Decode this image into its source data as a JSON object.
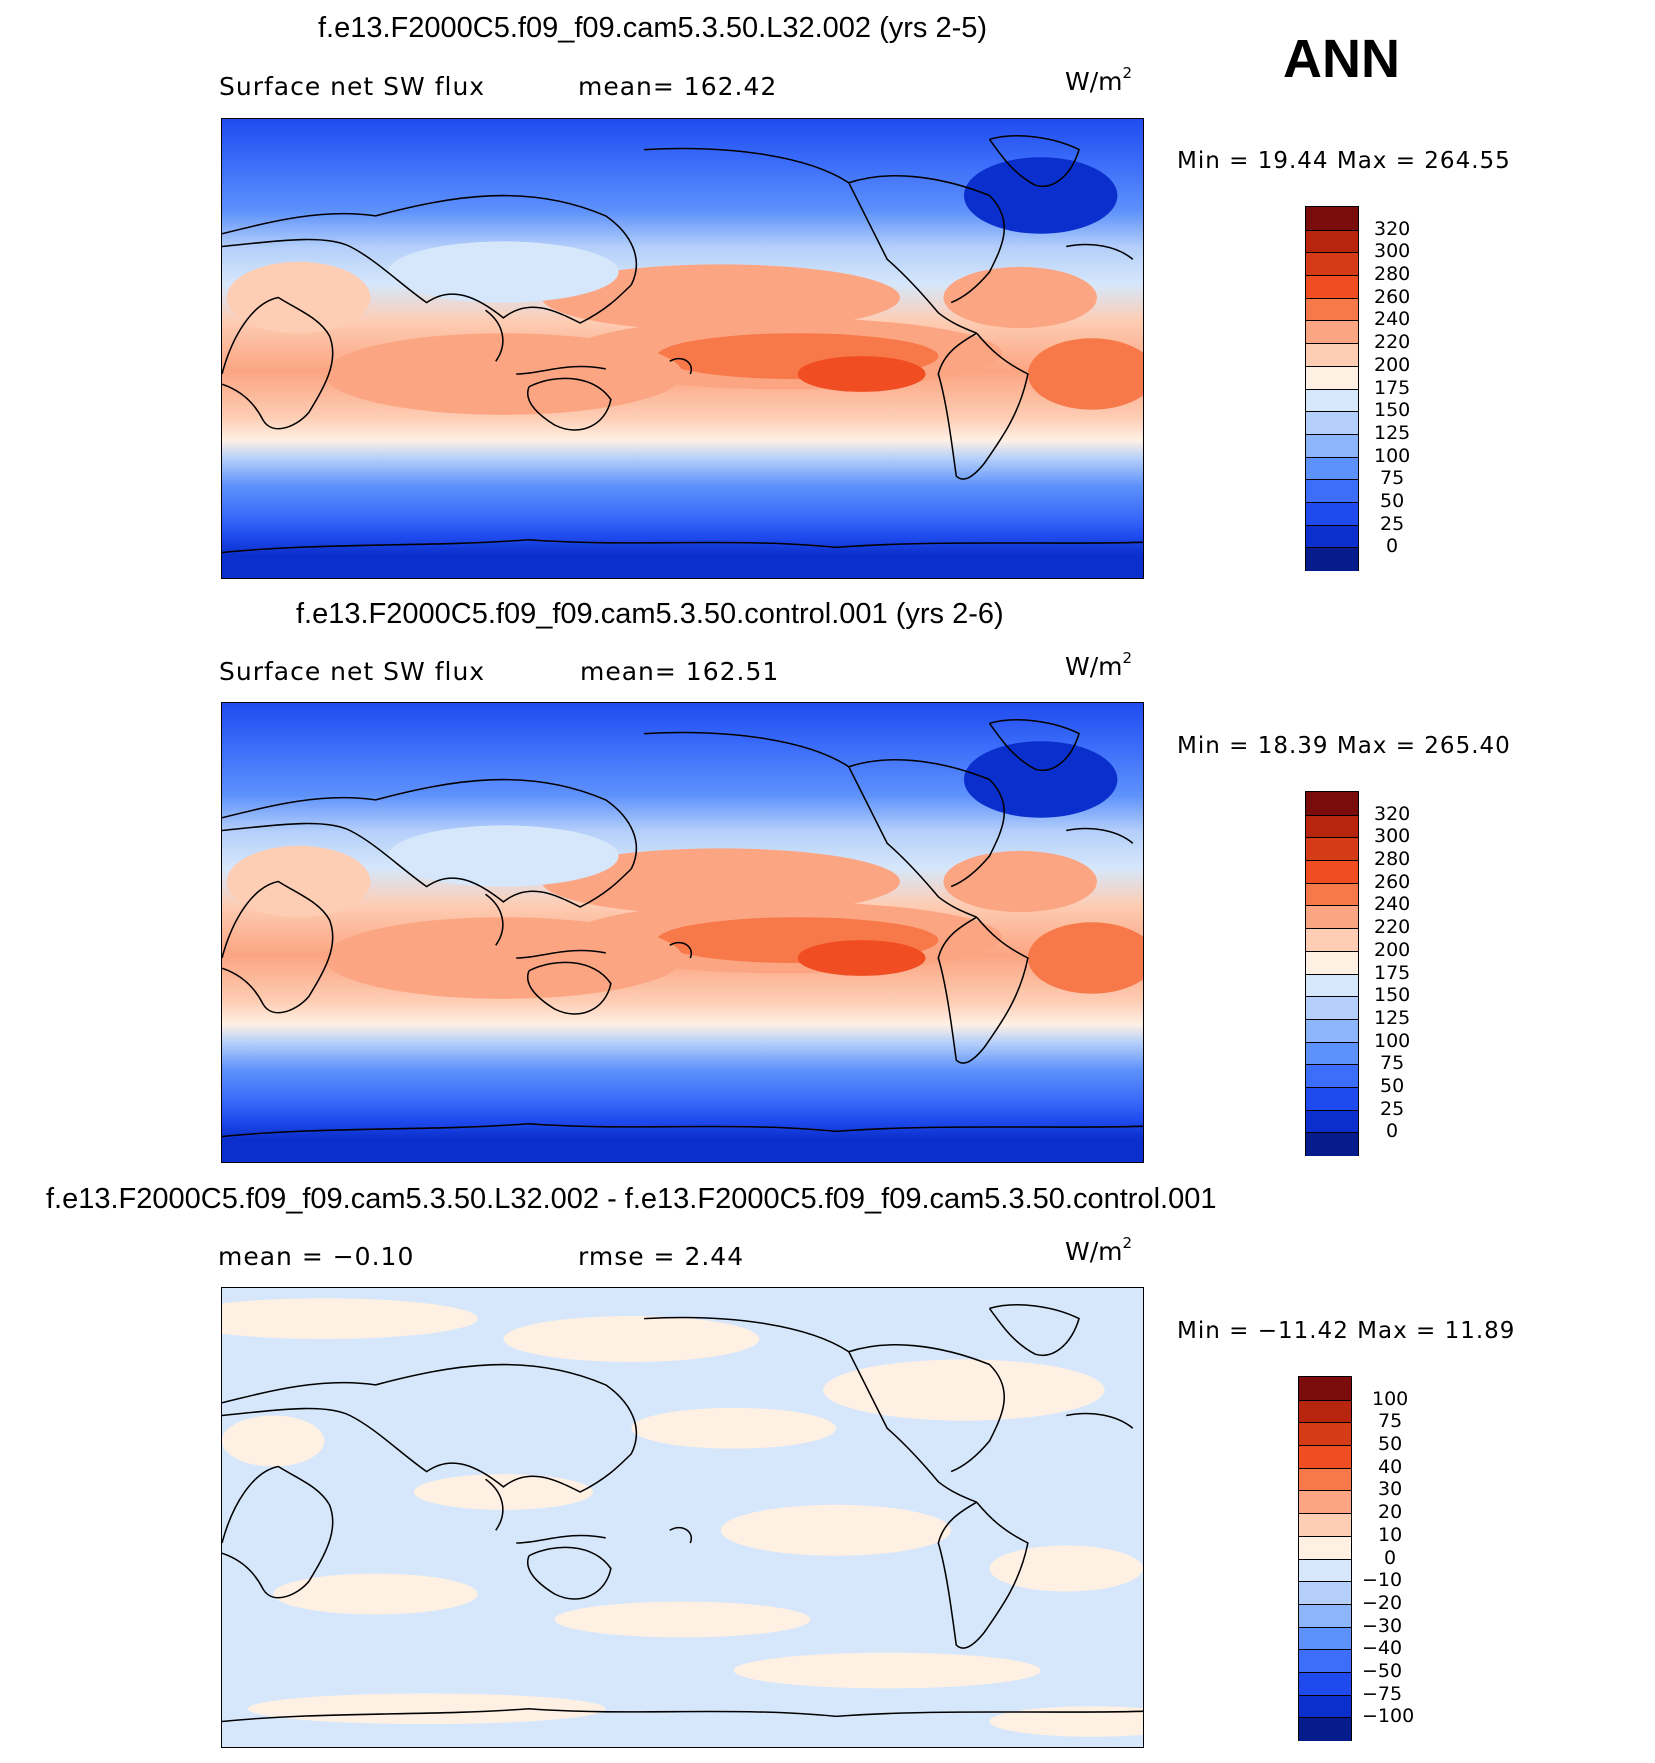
{
  "season": "ANN",
  "units_base": "W/m",
  "units_exp": "2",
  "panels": [
    {
      "title": "f.e13.F2000C5.f09_f09.cam5.3.50.L32.002 (yrs 2-5)",
      "left_label": "Surface net SW flux",
      "right_label": "mean=  162.42",
      "minmax": "Min =   19.44  Max  =  264.55",
      "scheme": "abs"
    },
    {
      "title": "f.e13.F2000C5.f09_f09.cam5.3.50.control.001 (yrs 2-6)",
      "left_label": "Surface net SW flux",
      "right_label": "mean=  162.51",
      "minmax": "Min =   18.39  Max  =  265.40",
      "scheme": "abs"
    },
    {
      "title": "f.e13.F2000C5.f09_f09.cam5.3.50.L32.002 - f.e13.F2000C5.f09_f09.cam5.3.50.control.001",
      "left_label": "mean =   −0.10",
      "right_label": "rmse =    2.44",
      "minmax": "Min = −11.42  Max =   11.89",
      "scheme": "diff"
    }
  ],
  "colorbars": {
    "abs": {
      "labels": [
        "320",
        "300",
        "280",
        "260",
        "240",
        "220",
        "200",
        "175",
        "150",
        "125",
        "100",
        "75",
        "50",
        "25",
        "0"
      ],
      "colors": [
        "#7a0c0c",
        "#b8250e",
        "#d43b16",
        "#f04e22",
        "#f7794a",
        "#fba582",
        "#fdcdb4",
        "#fff0e4",
        "#d6e7fb",
        "#b4cffa",
        "#8db5fb",
        "#5d91fb",
        "#3d6efa",
        "#1f4bee",
        "#0b2fcc",
        "#061b8c"
      ]
    },
    "diff": {
      "labels": [
        "100",
        "75",
        "50",
        "40",
        "30",
        "20",
        "10",
        "0",
        "−10",
        "−20",
        "−30",
        "−40",
        "−50",
        "−75",
        "−100"
      ],
      "colors": [
        "#7a0c0c",
        "#b8250e",
        "#d43b16",
        "#f04e22",
        "#f7794a",
        "#fba582",
        "#fdcdb4",
        "#fff0e4",
        "#d6e7fb",
        "#b4cffa",
        "#8db5fb",
        "#5d91fb",
        "#3d6efa",
        "#1f4bee",
        "#0b2fcc",
        "#061b8c"
      ]
    }
  }
}
